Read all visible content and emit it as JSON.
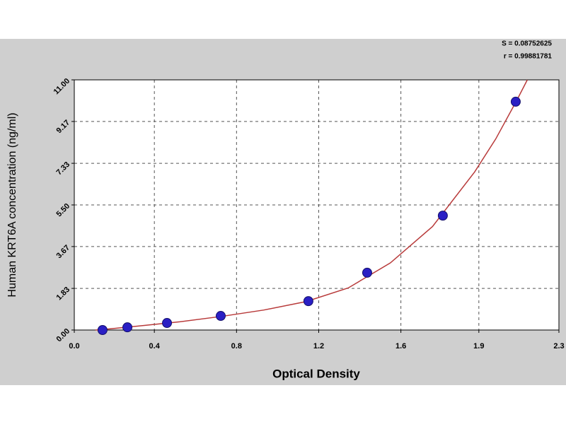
{
  "chart_data": {
    "type": "scatter",
    "x_label": "Optical Density",
    "y_label": "Human KRT6A concentration (ng/ml)",
    "annotations": [
      "S = 0.08752625",
      "r = 0.99881781"
    ],
    "xlim": [
      0,
      2.3
    ],
    "ylim": [
      0,
      11
    ],
    "xticks": [
      {
        "value": 0,
        "label": "0.0"
      },
      {
        "value": 0.38,
        "label": "0.4"
      },
      {
        "value": 0.77,
        "label": "0.8"
      },
      {
        "value": 1.16,
        "label": "1.2"
      },
      {
        "value": 1.55,
        "label": "1.6"
      },
      {
        "value": 1.92,
        "label": "1.9"
      },
      {
        "value": 2.3,
        "label": "2.3"
      }
    ],
    "yticks": [
      {
        "value": 0,
        "label": "0.00"
      },
      1.83,
      3.67,
      {
        "value": 5.5,
        "label": "5.50"
      },
      7.33,
      9.17,
      {
        "value": 11,
        "label": "11.00"
      }
    ],
    "grid": true,
    "points": {
      "color": "#2a1fc4",
      "x": [
        0.134,
        0.252,
        0.44,
        0.695,
        1.111,
        1.39,
        1.749,
        2.095
      ],
      "values": [
        0,
        0.12,
        0.31,
        0.62,
        1.27,
        2.52,
        5.03,
        10.04
      ]
    },
    "curve": {
      "color": "#b83a3a",
      "x": [
        0.1,
        0.134,
        0.3,
        0.5,
        0.7,
        0.9,
        1.1,
        1.3,
        1.5,
        1.7,
        1.9,
        2.0,
        2.1,
        2.15
      ],
      "values": [
        0,
        0.02,
        0.17,
        0.36,
        0.6,
        0.88,
        1.25,
        1.85,
        2.95,
        4.55,
        6.95,
        8.4,
        10.1,
        11.0
      ]
    }
  }
}
